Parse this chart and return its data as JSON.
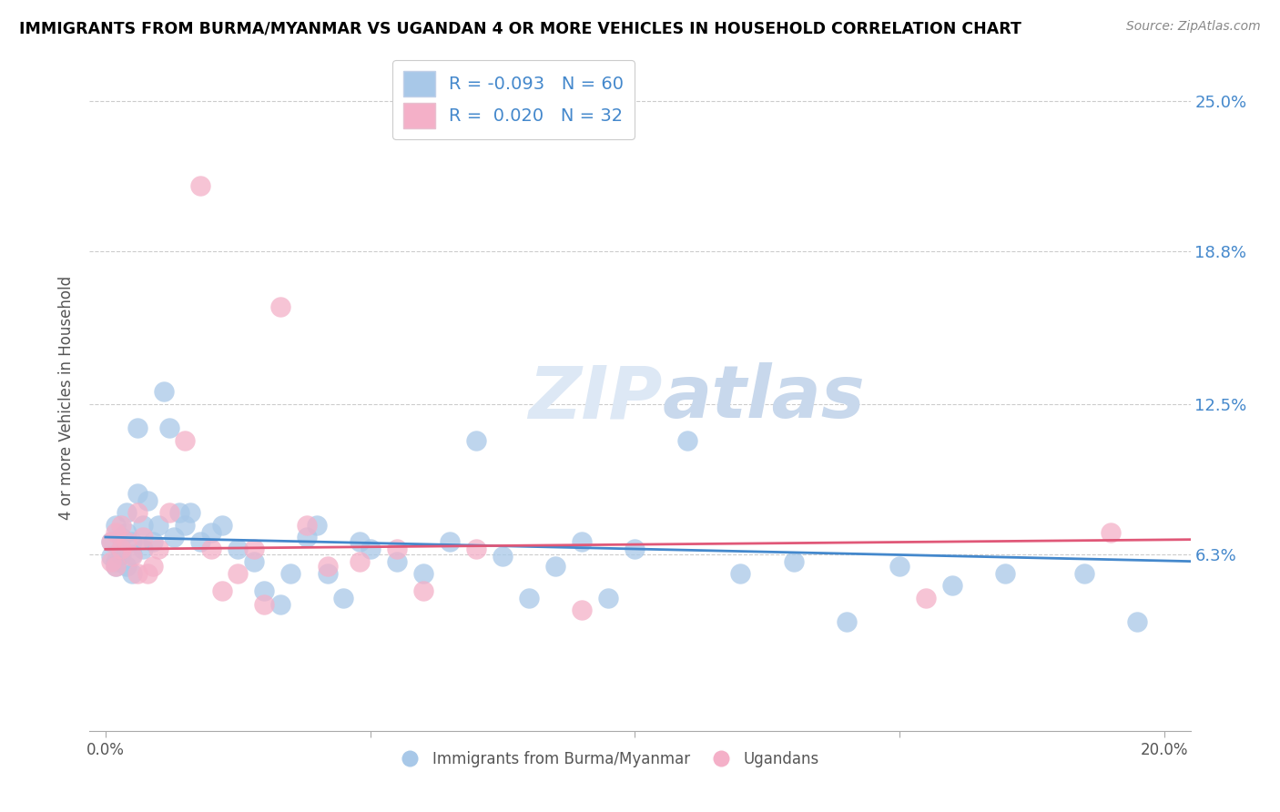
{
  "title": "IMMIGRANTS FROM BURMA/MYANMAR VS UGANDAN 4 OR MORE VEHICLES IN HOUSEHOLD CORRELATION CHART",
  "source": "Source: ZipAtlas.com",
  "ylabel": "4 or more Vehicles in Household",
  "xlim": [
    0.0,
    0.205
  ],
  "ylim": [
    0.0,
    0.265
  ],
  "ytick_vals": [
    0.063,
    0.125,
    0.188,
    0.25
  ],
  "ytick_labels": [
    "6.3%",
    "12.5%",
    "18.8%",
    "25.0%"
  ],
  "xtick_vals": [
    0.0,
    0.05,
    0.1,
    0.15,
    0.2
  ],
  "xtick_labels": [
    "0.0%",
    "",
    "",
    "",
    "20.0%"
  ],
  "blue_R": -0.093,
  "blue_N": 60,
  "pink_R": 0.02,
  "pink_N": 32,
  "blue_color": "#a8c8e8",
  "pink_color": "#f4b0c8",
  "blue_line_color": "#4488cc",
  "pink_line_color": "#e05878",
  "text_color_blue": "#4488cc",
  "watermark_color": "#dde8f5",
  "legend_label_blue": "Immigrants from Burma/Myanmar",
  "legend_label_pink": "Ugandans",
  "blue_line_y0": 0.07,
  "blue_line_y1": 0.06,
  "pink_line_y0": 0.065,
  "pink_line_y1": 0.069,
  "blue_x": [
    0.001,
    0.001,
    0.002,
    0.002,
    0.002,
    0.003,
    0.003,
    0.003,
    0.004,
    0.004,
    0.004,
    0.005,
    0.005,
    0.005,
    0.006,
    0.006,
    0.007,
    0.007,
    0.008,
    0.009,
    0.01,
    0.011,
    0.012,
    0.013,
    0.014,
    0.015,
    0.016,
    0.018,
    0.02,
    0.022,
    0.025,
    0.028,
    0.03,
    0.033,
    0.035,
    0.038,
    0.04,
    0.042,
    0.045,
    0.048,
    0.05,
    0.055,
    0.06,
    0.065,
    0.07,
    0.075,
    0.08,
    0.085,
    0.09,
    0.095,
    0.1,
    0.11,
    0.12,
    0.13,
    0.14,
    0.15,
    0.16,
    0.17,
    0.185,
    0.195
  ],
  "blue_y": [
    0.068,
    0.062,
    0.075,
    0.06,
    0.058,
    0.065,
    0.063,
    0.07,
    0.08,
    0.058,
    0.072,
    0.063,
    0.055,
    0.068,
    0.088,
    0.115,
    0.065,
    0.075,
    0.085,
    0.068,
    0.075,
    0.13,
    0.115,
    0.07,
    0.08,
    0.075,
    0.08,
    0.068,
    0.072,
    0.075,
    0.065,
    0.06,
    0.048,
    0.042,
    0.055,
    0.07,
    0.075,
    0.055,
    0.045,
    0.068,
    0.065,
    0.06,
    0.055,
    0.068,
    0.11,
    0.062,
    0.045,
    0.058,
    0.068,
    0.045,
    0.065,
    0.11,
    0.055,
    0.06,
    0.035,
    0.058,
    0.05,
    0.055,
    0.055,
    0.035
  ],
  "pink_x": [
    0.001,
    0.001,
    0.002,
    0.002,
    0.003,
    0.003,
    0.004,
    0.005,
    0.006,
    0.006,
    0.007,
    0.008,
    0.009,
    0.01,
    0.012,
    0.015,
    0.018,
    0.02,
    0.022,
    0.025,
    0.028,
    0.03,
    0.033,
    0.038,
    0.042,
    0.048,
    0.055,
    0.06,
    0.07,
    0.09,
    0.155,
    0.19
  ],
  "pink_y": [
    0.068,
    0.06,
    0.072,
    0.058,
    0.065,
    0.075,
    0.068,
    0.062,
    0.08,
    0.055,
    0.07,
    0.055,
    0.058,
    0.065,
    0.08,
    0.11,
    0.215,
    0.065,
    0.048,
    0.055,
    0.065,
    0.042,
    0.165,
    0.075,
    0.058,
    0.06,
    0.065,
    0.048,
    0.065,
    0.04,
    0.045,
    0.072
  ]
}
